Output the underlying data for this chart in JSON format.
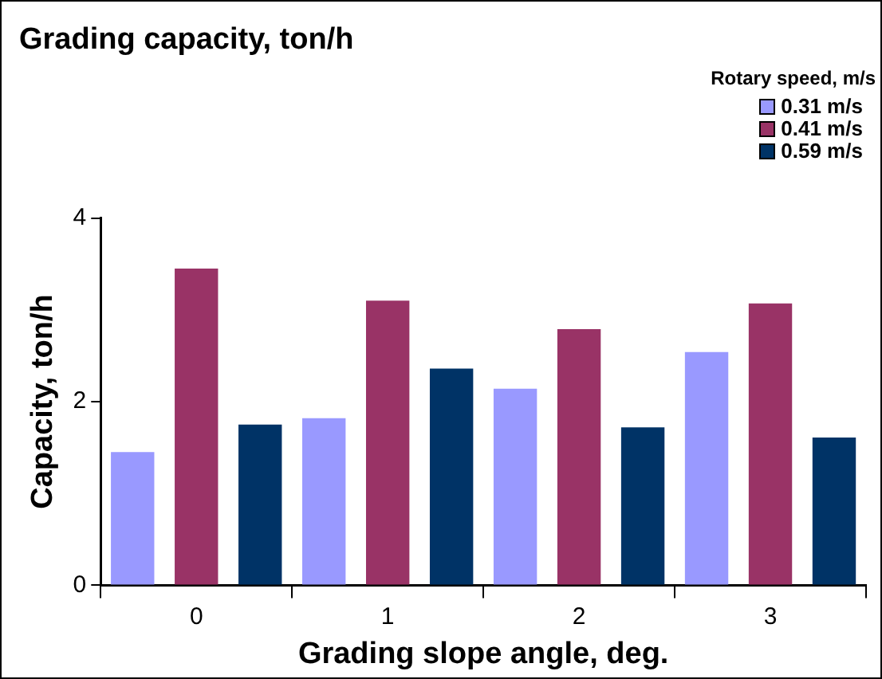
{
  "chart_data": {
    "type": "bar",
    "title": "Grading capacity, ton/h",
    "xlabel": "Grading slope angle, deg.",
    "ylabel": "Capacity, ton/h",
    "legend_title": "Rotary speed, m/s",
    "categories": [
      "0",
      "1",
      "2",
      "3"
    ],
    "series": [
      {
        "name": "0.31 m/s",
        "color": "#9999ff",
        "values": [
          1.45,
          1.82,
          2.14,
          2.54
        ]
      },
      {
        "name": "0.41 m/s",
        "color": "#993366",
        "values": [
          3.45,
          3.1,
          2.79,
          3.07
        ]
      },
      {
        "name": "0.59 m/s",
        "color": "#003366",
        "values": [
          1.75,
          2.36,
          1.72,
          1.61
        ]
      }
    ],
    "ylim": [
      0,
      4
    ],
    "yticks": [
      0,
      2,
      4
    ],
    "grid": false,
    "legend": "top right"
  }
}
